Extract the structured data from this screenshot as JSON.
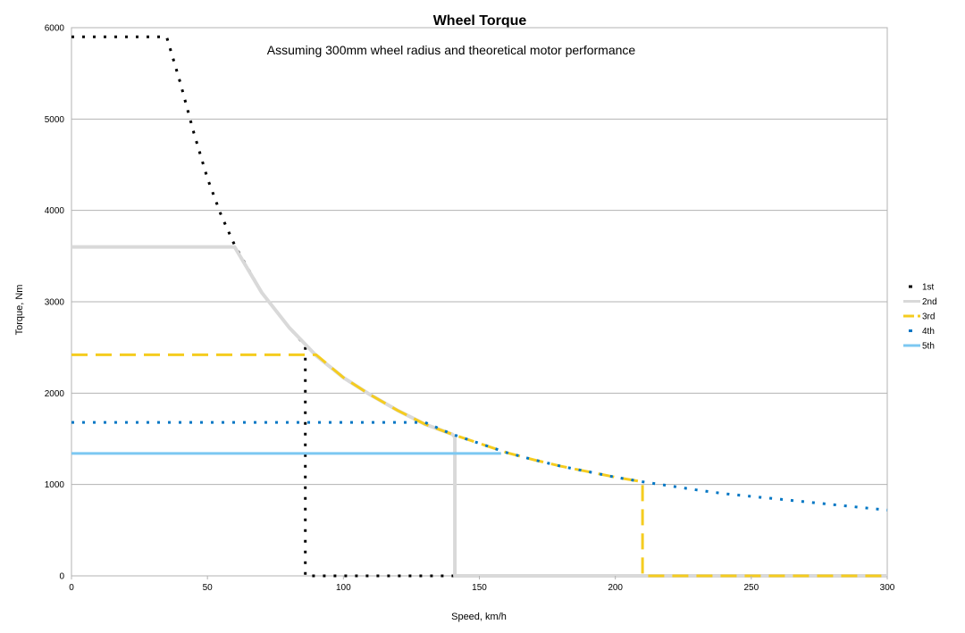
{
  "chart_data": {
    "type": "line",
    "title": "Wheel Torque",
    "subtitle": "Assuming 300mm wheel radius and theoretical motor performance",
    "xlabel": "Speed, km/h",
    "ylabel": "Torque, Nm",
    "xlim": [
      0,
      300
    ],
    "ylim": [
      0,
      6000
    ],
    "xticks": [
      0,
      50,
      100,
      150,
      200,
      250,
      300
    ],
    "yticks": [
      0,
      1000,
      2000,
      3000,
      4000,
      5000,
      6000
    ],
    "grid": "horizontal",
    "legend_position": "right",
    "series": [
      {
        "name": "1st",
        "color": "#000000",
        "style": "dotted",
        "points": [
          [
            0,
            5900
          ],
          [
            35,
            5900
          ],
          [
            40,
            5400
          ],
          [
            45,
            4850
          ],
          [
            50,
            4350
          ],
          [
            55,
            3950
          ],
          [
            60,
            3620
          ],
          [
            70,
            3100
          ],
          [
            80,
            2720
          ],
          [
            86,
            2520
          ],
          [
            86,
            0
          ],
          [
            300,
            0
          ]
        ]
      },
      {
        "name": "2nd",
        "color": "#d9d9d9",
        "style": "solid",
        "points": [
          [
            0,
            3600
          ],
          [
            58,
            3600
          ],
          [
            60,
            3600
          ],
          [
            70,
            3100
          ],
          [
            80,
            2720
          ],
          [
            90,
            2410
          ],
          [
            100,
            2170
          ],
          [
            110,
            1980
          ],
          [
            120,
            1810
          ],
          [
            130,
            1660
          ],
          [
            140,
            1550
          ],
          [
            141,
            1520
          ],
          [
            141,
            0
          ],
          [
            300,
            0
          ]
        ]
      },
      {
        "name": "3rd",
        "color": "#f5cc1f",
        "style": "dashed",
        "points": [
          [
            0,
            2420
          ],
          [
            90,
            2420
          ],
          [
            100,
            2170
          ],
          [
            110,
            1980
          ],
          [
            120,
            1810
          ],
          [
            130,
            1660
          ],
          [
            140,
            1550
          ],
          [
            150,
            1450
          ],
          [
            160,
            1350
          ],
          [
            170,
            1270
          ],
          [
            180,
            1200
          ],
          [
            190,
            1140
          ],
          [
            200,
            1080
          ],
          [
            210,
            1030
          ],
          [
            210,
            0
          ],
          [
            300,
            0
          ]
        ]
      },
      {
        "name": "4th",
        "color": "#0076c4",
        "style": "dotted",
        "points": [
          [
            0,
            1680
          ],
          [
            130,
            1680
          ],
          [
            140,
            1550
          ],
          [
            150,
            1450
          ],
          [
            160,
            1350
          ],
          [
            170,
            1270
          ],
          [
            180,
            1200
          ],
          [
            190,
            1140
          ],
          [
            200,
            1080
          ],
          [
            210,
            1030
          ],
          [
            220,
            985
          ],
          [
            230,
            940
          ],
          [
            240,
            900
          ],
          [
            250,
            870
          ],
          [
            260,
            840
          ],
          [
            270,
            810
          ],
          [
            280,
            780
          ],
          [
            290,
            750
          ],
          [
            300,
            720
          ]
        ]
      },
      {
        "name": "5th",
        "color": "#7cc8f2",
        "style": "solid",
        "points": [
          [
            0,
            1340
          ],
          [
            158,
            1340
          ]
        ]
      }
    ]
  }
}
